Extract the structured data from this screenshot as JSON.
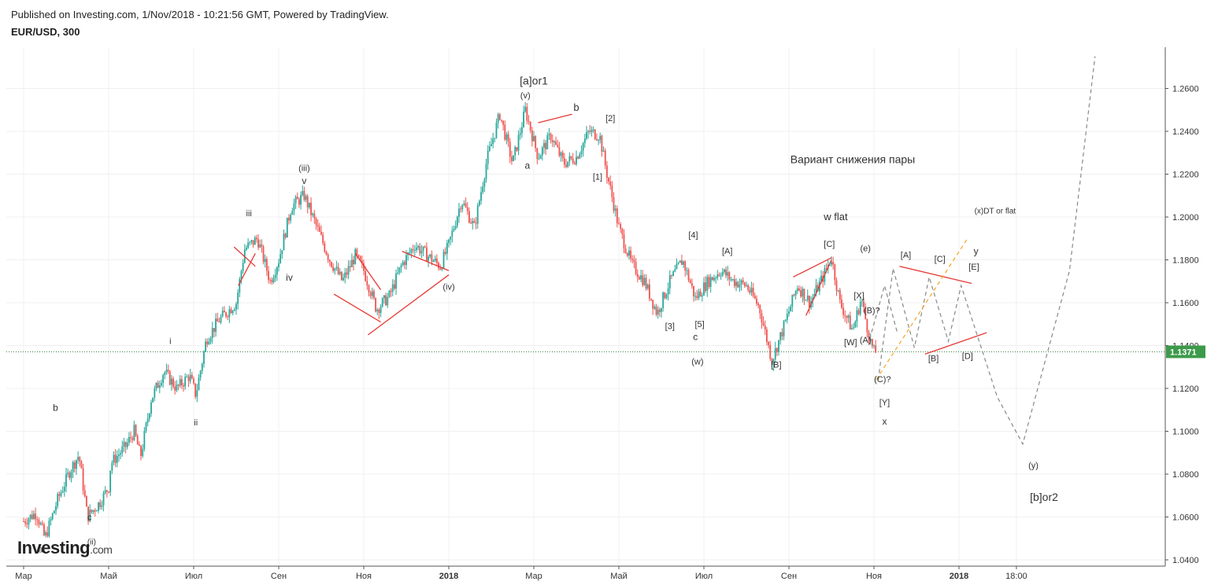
{
  "header": {
    "published": "Published on Investing.com, 1/Nov/2018 - 10:21:56 GMT, Powered by TradingView.",
    "symbol": "EUR/USD, 300"
  },
  "logo": {
    "main": "Investing",
    "suffix": ".com"
  },
  "colors": {
    "up_candle": "#26a69a",
    "down_candle": "#ef5350",
    "trendline": "#e53935",
    "projection": "#888888",
    "projection_orange": "#f5a623",
    "price_line": "#2e7d32",
    "grid": "#f0f0f0"
  },
  "chart_data": {
    "type": "line",
    "title": "EUR/USD, 300",
    "ylim": [
      1.04,
      1.27
    ],
    "grid": true,
    "current_price_label": "1.1371",
    "current_price": 1.1371,
    "x_ticks": [
      {
        "t": 0.0,
        "label": "Мар"
      },
      {
        "t": 2.0,
        "label": "Май"
      },
      {
        "t": 4.0,
        "label": "Июл"
      },
      {
        "t": 6.0,
        "label": "Сен"
      },
      {
        "t": 8.0,
        "label": "Ноя"
      },
      {
        "t": 10.0,
        "label": "2018"
      },
      {
        "t": 12.0,
        "label": "Мар"
      },
      {
        "t": 14.0,
        "label": "Май"
      },
      {
        "t": 16.0,
        "label": "Июл"
      },
      {
        "t": 18.0,
        "label": "Сен"
      },
      {
        "t": 20.0,
        "label": "Ноя"
      },
      {
        "t": 22.0,
        "label": "2018"
      },
      {
        "t": 23.35,
        "label": "18:00"
      }
    ],
    "y_ticks": [
      "1.2600",
      "1.2400",
      "1.2200",
      "1.2000",
      "1.1800",
      "1.1600",
      "1.1400",
      "1.1200",
      "1.1000",
      "1.0800",
      "1.0600",
      "1.0400"
    ],
    "series": [
      {
        "values": [
          [
            0.0,
            1.058
          ],
          [
            0.3,
            1.062
          ],
          [
            0.5,
            1.05
          ],
          [
            0.8,
            1.068
          ],
          [
            1.1,
            1.082
          ],
          [
            1.3,
            1.089
          ],
          [
            1.5,
            1.06
          ],
          [
            1.8,
            1.067
          ],
          [
            2.0,
            1.074
          ],
          [
            2.05,
            1.085
          ],
          [
            2.4,
            1.093
          ],
          [
            2.6,
            1.1
          ],
          [
            2.75,
            1.088
          ],
          [
            3.0,
            1.115
          ],
          [
            3.3,
            1.128
          ],
          [
            3.6,
            1.12
          ],
          [
            3.9,
            1.126
          ],
          [
            4.05,
            1.117
          ],
          [
            4.3,
            1.143
          ],
          [
            4.6,
            1.152
          ],
          [
            5.0,
            1.16
          ],
          [
            5.2,
            1.185
          ],
          [
            5.5,
            1.19
          ],
          [
            5.8,
            1.17
          ],
          [
            6.0,
            1.18
          ],
          [
            6.3,
            1.205
          ],
          [
            6.6,
            1.21
          ],
          [
            6.9,
            1.195
          ],
          [
            7.2,
            1.18
          ],
          [
            7.5,
            1.17
          ],
          [
            7.8,
            1.182
          ],
          [
            8.0,
            1.175
          ],
          [
            8.3,
            1.157
          ],
          [
            8.6,
            1.163
          ],
          [
            8.9,
            1.178
          ],
          [
            9.2,
            1.187
          ],
          [
            9.5,
            1.182
          ],
          [
            9.8,
            1.177
          ],
          [
            10.0,
            1.187
          ],
          [
            10.3,
            1.208
          ],
          [
            10.6,
            1.195
          ],
          [
            10.9,
            1.227
          ],
          [
            11.2,
            1.248
          ],
          [
            11.5,
            1.225
          ],
          [
            11.8,
            1.25
          ],
          [
            12.1,
            1.228
          ],
          [
            12.4,
            1.238
          ],
          [
            12.7,
            1.225
          ],
          [
            13.0,
            1.228
          ],
          [
            13.3,
            1.24
          ],
          [
            13.55,
            1.238
          ],
          [
            13.7,
            1.222
          ],
          [
            14.0,
            1.195
          ],
          [
            14.3,
            1.178
          ],
          [
            14.6,
            1.17
          ],
          [
            14.9,
            1.155
          ],
          [
            15.2,
            1.17
          ],
          [
            15.5,
            1.18
          ],
          [
            15.8,
            1.162
          ],
          [
            16.1,
            1.17
          ],
          [
            16.4,
            1.175
          ],
          [
            16.7,
            1.17
          ],
          [
            17.0,
            1.168
          ],
          [
            17.3,
            1.158
          ],
          [
            17.6,
            1.133
          ],
          [
            17.9,
            1.15
          ],
          [
            18.2,
            1.168
          ],
          [
            18.5,
            1.16
          ],
          [
            18.8,
            1.172
          ],
          [
            19.0,
            1.181
          ],
          [
            19.2,
            1.16
          ],
          [
            19.5,
            1.147
          ],
          [
            19.7,
            1.162
          ],
          [
            19.9,
            1.143
          ],
          [
            20.0,
            1.137
          ],
          [
            20.05,
            1.1371
          ]
        ]
      }
    ],
    "projections": [
      {
        "style": "dashed",
        "color": "projection",
        "points": [
          [
            20.1,
            1.124
          ],
          [
            20.45,
            1.176
          ],
          [
            20.95,
            1.139
          ],
          [
            21.3,
            1.172
          ],
          [
            21.75,
            1.142
          ],
          [
            22.05,
            1.168
          ],
          [
            22.9,
            1.116
          ],
          [
            23.5,
            1.094
          ],
          [
            24.6,
            1.175
          ],
          [
            25.2,
            1.275
          ]
        ]
      },
      {
        "style": "dashed",
        "color": "projection",
        "points": [
          [
            19.9,
            1.143
          ],
          [
            20.25,
            1.168
          ],
          [
            20.55,
            1.146
          ]
        ]
      },
      {
        "style": "dashed",
        "color": "projection_orange",
        "points": [
          [
            20.05,
            1.124
          ],
          [
            22.2,
            1.19
          ]
        ]
      }
    ],
    "trendlines": [
      [
        [
          5.05,
          1.168
        ],
        [
          5.45,
          1.183
        ]
      ],
      [
        [
          4.95,
          1.186
        ],
        [
          5.45,
          1.177
        ]
      ],
      [
        [
          7.3,
          1.164
        ],
        [
          8.4,
          1.151
        ]
      ],
      [
        [
          7.8,
          1.183
        ],
        [
          8.4,
          1.166
        ]
      ],
      [
        [
          8.1,
          1.145
        ],
        [
          10.0,
          1.173
        ]
      ],
      [
        [
          8.9,
          1.184
        ],
        [
          10.0,
          1.175
        ]
      ],
      [
        [
          12.1,
          1.244
        ],
        [
          12.9,
          1.248
        ]
      ],
      [
        [
          18.1,
          1.172
        ],
        [
          19.0,
          1.181
        ]
      ],
      [
        [
          18.4,
          1.154
        ],
        [
          19.0,
          1.18
        ]
      ],
      [
        [
          20.6,
          1.177
        ],
        [
          22.3,
          1.169
        ]
      ],
      [
        [
          21.2,
          1.136
        ],
        [
          22.65,
          1.146
        ]
      ]
    ],
    "annotations": [
      {
        "text": "[a]or1",
        "t": 12.0,
        "y": 1.2618,
        "size": 14
      },
      {
        "text": "(v)",
        "t": 11.8,
        "y": 1.2555,
        "size": 11
      },
      {
        "text": "b",
        "t": 13.0,
        "y": 1.2495,
        "size": 13
      },
      {
        "text": "[2]",
        "t": 13.8,
        "y": 1.2448,
        "size": 11
      },
      {
        "text": "a",
        "t": 11.85,
        "y": 1.2225,
        "size": 12
      },
      {
        "text": "[1]",
        "t": 13.5,
        "y": 1.2174,
        "size": 11
      },
      {
        "text": "Вариант  снижения пары",
        "t": 19.5,
        "y": 1.2252,
        "size": 14
      },
      {
        "text": "(iii)",
        "t": 6.6,
        "y": 1.2215,
        "size": 11
      },
      {
        "text": "v",
        "t": 6.6,
        "y": 1.2155,
        "size": 12
      },
      {
        "text": "iii",
        "t": 5.3,
        "y": 1.2003,
        "size": 11
      },
      {
        "text": "iv",
        "t": 6.25,
        "y": 1.1702,
        "size": 12
      },
      {
        "text": "(iv)",
        "t": 10.0,
        "y": 1.166,
        "size": 11
      },
      {
        "text": "[4]",
        "t": 15.75,
        "y": 1.1902,
        "size": 11
      },
      {
        "text": "[A]",
        "t": 16.55,
        "y": 1.1827,
        "size": 11
      },
      {
        "text": "[3]",
        "t": 15.2,
        "y": 1.1477,
        "size": 11
      },
      {
        "text": "[5]",
        "t": 15.9,
        "y": 1.1487,
        "size": 11
      },
      {
        "text": "c",
        "t": 15.8,
        "y": 1.1425,
        "size": 12
      },
      {
        "text": "(w)",
        "t": 15.85,
        "y": 1.1312,
        "size": 11
      },
      {
        "text": "[B]",
        "t": 17.7,
        "y": 1.1297,
        "size": 11
      },
      {
        "text": "w flat",
        "t": 19.1,
        "y": 1.1985,
        "size": 13
      },
      {
        "text": "[C]",
        "t": 18.95,
        "y": 1.186,
        "size": 11
      },
      {
        "text": "(e)",
        "t": 19.8,
        "y": 1.184,
        "size": 11
      },
      {
        "text": "[X]",
        "t": 19.65,
        "y": 1.162,
        "size": 11
      },
      {
        "text": "(B)?",
        "t": 19.95,
        "y": 1.155,
        "size": 11
      },
      {
        "text": "[W]",
        "t": 19.45,
        "y": 1.1402,
        "size": 11
      },
      {
        "text": "(A)",
        "t": 19.8,
        "y": 1.1412,
        "size": 11
      },
      {
        "text": "(C)?",
        "t": 20.2,
        "y": 1.123,
        "size": 11
      },
      {
        "text": "[Y]",
        "t": 20.25,
        "y": 1.1122,
        "size": 11
      },
      {
        "text": "x",
        "t": 20.25,
        "y": 1.1032,
        "size": 12
      },
      {
        "text": "[A]",
        "t": 20.75,
        "y": 1.181,
        "size": 11
      },
      {
        "text": "[C]",
        "t": 21.55,
        "y": 1.179,
        "size": 11
      },
      {
        "text": "[B]",
        "t": 21.4,
        "y": 1.1327,
        "size": 11
      },
      {
        "text": "[D]",
        "t": 22.2,
        "y": 1.1337,
        "size": 11
      },
      {
        "text": "(x)DT or flat",
        "t": 22.85,
        "y": 1.2017,
        "size": 10
      },
      {
        "text": "y",
        "t": 22.4,
        "y": 1.1825,
        "size": 12
      },
      {
        "text": "[E]",
        "t": 22.35,
        "y": 1.1755,
        "size": 11
      },
      {
        "text": "(y)",
        "t": 23.75,
        "y": 1.0827,
        "size": 11
      },
      {
        "text": "[b]or2",
        "t": 24.0,
        "y": 1.0675,
        "size": 14
      },
      {
        "text": "i",
        "t": 3.45,
        "y": 1.1407,
        "size": 11
      },
      {
        "text": "ii",
        "t": 4.05,
        "y": 1.1027,
        "size": 11
      },
      {
        "text": "b",
        "t": 0.75,
        "y": 1.1095,
        "size": 12
      },
      {
        "text": "c",
        "t": 1.55,
        "y": 1.0585,
        "size": 11
      },
      {
        "text": "a",
        "t": 0.4,
        "y": 1.0435,
        "size": 11
      },
      {
        "text": "(ii)",
        "t": 1.6,
        "y": 1.0472,
        "size": 10
      }
    ]
  }
}
